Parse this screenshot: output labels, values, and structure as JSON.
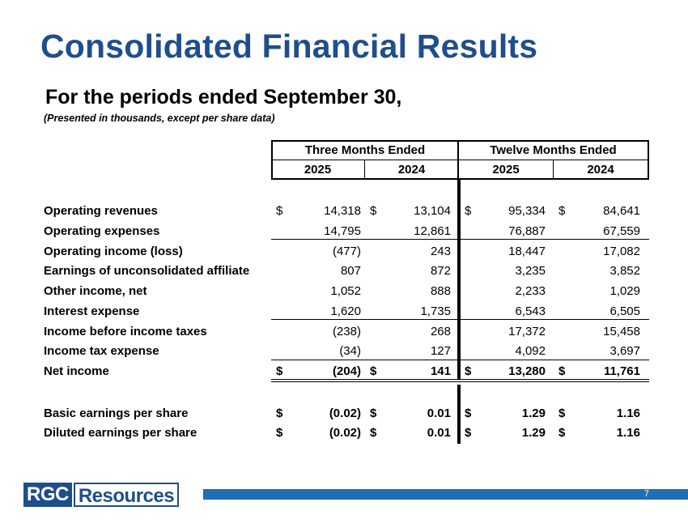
{
  "title": "Consolidated Financial Results",
  "subtitle": "For the periods ended September 30,",
  "note": "(Presented in thousands, except per share data)",
  "headers": {
    "three_months": "Three Months Ended",
    "twelve_months": "Twelve Months Ended",
    "years": [
      "2025",
      "2024",
      "2025",
      "2024"
    ]
  },
  "rows": [
    {
      "label": "Operating revenues",
      "cur": [
        "$",
        "$",
        "$",
        "$"
      ],
      "values": [
        "14,318",
        "13,104",
        "95,334",
        "84,641"
      ]
    },
    {
      "label": "Operating expenses",
      "cur": [
        "",
        "",
        "",
        ""
      ],
      "values": [
        "14,795",
        "12,861",
        "76,887",
        "67,559"
      ]
    },
    {
      "label": "Operating income (loss)",
      "cur": [
        "",
        "",
        "",
        ""
      ],
      "values": [
        "(477)",
        "243",
        "18,447",
        "17,082"
      ]
    },
    {
      "label": "Earnings of unconsolidated affiliate",
      "cur": [
        "",
        "",
        "",
        ""
      ],
      "values": [
        "807",
        "872",
        "3,235",
        "3,852"
      ]
    },
    {
      "label": "Other income, net",
      "cur": [
        "",
        "",
        "",
        ""
      ],
      "values": [
        "1,052",
        "888",
        "2,233",
        "1,029"
      ]
    },
    {
      "label": "Interest expense",
      "cur": [
        "",
        "",
        "",
        ""
      ],
      "values": [
        "1,620",
        "1,735",
        "6,543",
        "6,505"
      ]
    },
    {
      "label": "Income before income taxes",
      "cur": [
        "",
        "",
        "",
        ""
      ],
      "values": [
        "(238)",
        "268",
        "17,372",
        "15,458"
      ]
    },
    {
      "label": "Income tax expense",
      "cur": [
        "",
        "",
        "",
        ""
      ],
      "values": [
        "(34)",
        "127",
        "4,092",
        "3,697"
      ]
    },
    {
      "label": "Net income",
      "cur": [
        "$",
        "$",
        "$",
        "$"
      ],
      "values": [
        "(204)",
        "141",
        "13,280",
        "11,761"
      ]
    },
    {
      "label": "Basic earnings per share",
      "cur": [
        "$",
        "$",
        "$",
        "$"
      ],
      "values": [
        "(0.02)",
        "0.01",
        "1.29",
        "1.16"
      ]
    },
    {
      "label": "Diluted earnings per share",
      "cur": [
        "$",
        "$",
        "$",
        "$"
      ],
      "values": [
        "(0.02)",
        "0.01",
        "1.29",
        "1.16"
      ]
    }
  ],
  "footer": {
    "logo_left": "RGC",
    "logo_right": "Resources",
    "page_number": "7"
  },
  "colors": {
    "brand": "#1f4e8c",
    "bar": "#1f6fb4"
  }
}
